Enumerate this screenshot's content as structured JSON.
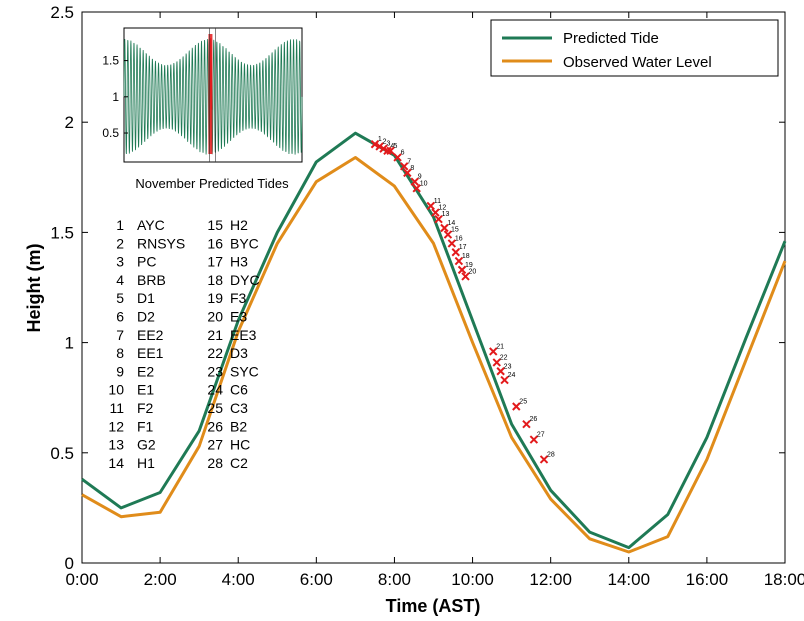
{
  "chart_data": {
    "type": "line",
    "title": "",
    "xlabel": "Time (AST)",
    "ylabel": "Height (m)",
    "xlim": [
      0,
      18
    ],
    "ylim": [
      0,
      2.5
    ],
    "x_ticks": [
      "0:00",
      "2:00",
      "4:00",
      "6:00",
      "8:00",
      "10:00",
      "12:00",
      "14:00",
      "16:00",
      "18:00"
    ],
    "y_ticks": [
      "0",
      "0.5",
      "1",
      "1.5",
      "2",
      "2.5"
    ],
    "grid": false,
    "legend_position": "top-right",
    "x": [
      0,
      1,
      2,
      3,
      4,
      5,
      6,
      7,
      8,
      9,
      10,
      11,
      12,
      13,
      14,
      15,
      16,
      17,
      18
    ],
    "series": [
      {
        "name": "Predicted Tide",
        "color": "#1f7a55",
        "values": [
          0.38,
          0.25,
          0.32,
          0.6,
          1.1,
          1.5,
          1.82,
          1.95,
          1.85,
          1.57,
          1.1,
          0.63,
          0.33,
          0.14,
          0.07,
          0.22,
          0.57,
          1.02,
          1.46
        ]
      },
      {
        "name": "Observed Water Level",
        "color": "#e08c1a",
        "values": [
          0.31,
          0.21,
          0.23,
          0.53,
          1.05,
          1.45,
          1.73,
          1.84,
          1.71,
          1.45,
          1.0,
          0.57,
          0.29,
          0.11,
          0.05,
          0.12,
          0.47,
          0.92,
          1.37
        ]
      }
    ],
    "sample_points": {
      "color": "#e31a1c",
      "labels": [
        "1",
        "2",
        "3",
        "4",
        "5",
        "6",
        "7",
        "8",
        "9",
        "10",
        "11",
        "12",
        "13",
        "14",
        "15",
        "16",
        "17",
        "18",
        "19",
        "20",
        "21",
        "22",
        "23",
        "24",
        "25",
        "26",
        "27",
        "28"
      ],
      "x": [
        7.5,
        7.62,
        7.72,
        7.82,
        7.9,
        8.08,
        8.25,
        8.33,
        8.52,
        8.57,
        8.93,
        9.05,
        9.13,
        9.28,
        9.37,
        9.47,
        9.57,
        9.65,
        9.73,
        9.82,
        10.53,
        10.62,
        10.72,
        10.82,
        11.12,
        11.38,
        11.57,
        11.83
      ],
      "y": [
        1.9,
        1.89,
        1.88,
        1.87,
        1.87,
        1.84,
        1.8,
        1.77,
        1.73,
        1.7,
        1.62,
        1.59,
        1.56,
        1.52,
        1.49,
        1.45,
        1.41,
        1.37,
        1.33,
        1.3,
        0.96,
        0.91,
        0.87,
        0.83,
        0.71,
        0.63,
        0.56,
        0.47
      ]
    },
    "site_list": [
      {
        "n": "1",
        "code": "AYC"
      },
      {
        "n": "2",
        "code": "RNSYS"
      },
      {
        "n": "3",
        "code": "PC"
      },
      {
        "n": "4",
        "code": "BRB"
      },
      {
        "n": "5",
        "code": "D1"
      },
      {
        "n": "6",
        "code": "D2"
      },
      {
        "n": "7",
        "code": "EE2"
      },
      {
        "n": "8",
        "code": "EE1"
      },
      {
        "n": "9",
        "code": "E2"
      },
      {
        "n": "10",
        "code": "E1"
      },
      {
        "n": "11",
        "code": "F2"
      },
      {
        "n": "12",
        "code": "F1"
      },
      {
        "n": "13",
        "code": "G2"
      },
      {
        "n": "14",
        "code": "H1"
      },
      {
        "n": "15",
        "code": "H2"
      },
      {
        "n": "16",
        "code": "BYC"
      },
      {
        "n": "17",
        "code": "H3"
      },
      {
        "n": "18",
        "code": "DYC"
      },
      {
        "n": "19",
        "code": "F3"
      },
      {
        "n": "20",
        "code": "E3"
      },
      {
        "n": "21",
        "code": "EE3"
      },
      {
        "n": "22",
        "code": "D3"
      },
      {
        "n": "23",
        "code": "SYC"
      },
      {
        "n": "24",
        "code": "C6"
      },
      {
        "n": "25",
        "code": "C3"
      },
      {
        "n": "26",
        "code": "B2"
      },
      {
        "n": "27",
        "code": "HC"
      },
      {
        "n": "28",
        "code": "C2"
      }
    ],
    "inset": {
      "caption": "November Predicted Tides",
      "y_ticks": [
        "0.5",
        "1",
        "1.5"
      ],
      "ylim": [
        0.1,
        1.95
      ],
      "line_color": "#1f7a55",
      "highlight_color": "#e31a1c",
      "highlight_fraction": 0.48
    }
  }
}
